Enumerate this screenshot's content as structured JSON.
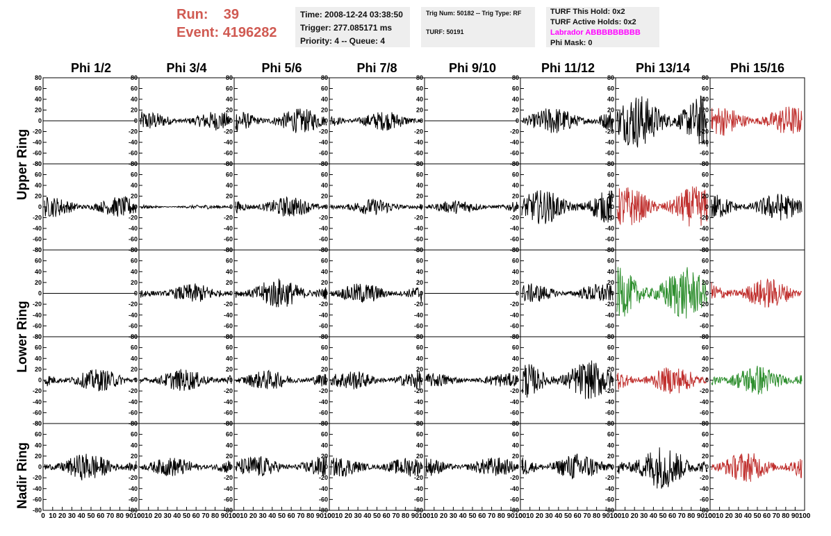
{
  "header": {
    "run_label": "Run:",
    "run_value": "39",
    "event_label": "Event:",
    "event_value": "4196282",
    "time": "Time: 2008-12-24 03:38:50",
    "trigger": "Trigger: 277.085171 ms",
    "priority": "Priority: 4 -- Queue: 4",
    "trig_num": "Trig Num: 50182 -- Trig Type: RF",
    "turf": "TURF: 50191",
    "turf_this_hold": "TURF This Hold: 0x2",
    "turf_active_holds": "TURF Active Holds: 0x2",
    "labrador": "Labrador ABBBBBBBBB",
    "phi_mask": "Phi Mask: 0"
  },
  "colors": {
    "run_text": "#d05a52",
    "labrador_text": "#ff00ff",
    "trace_default": "#000000",
    "trace_red": "#c0302e",
    "trace_green": "#2f8f2f"
  },
  "columns": [
    "Phi 1/2",
    "Phi 3/4",
    "Phi 5/6",
    "Phi 7/8",
    "Phi 9/10",
    "Phi 11/12",
    "Phi 13/14",
    "Phi 15/16"
  ],
  "ring_labels": [
    "Upper Ring",
    "Lower Ring",
    "Nadir Ring"
  ],
  "chart_data": {
    "type": "line",
    "description_rows": 5,
    "ylim": [
      -80,
      80
    ],
    "yticks": [
      80,
      60,
      40,
      20,
      0,
      -20,
      -40,
      -60,
      -80
    ],
    "xlim": [
      0,
      100
    ],
    "xticks": [
      0,
      10,
      20,
      30,
      40,
      50,
      60,
      70,
      80,
      90,
      100
    ],
    "grid": false,
    "panels": [
      [
        {
          "amp": 0,
          "color": "black"
        },
        {
          "amp": 14,
          "color": "black"
        },
        {
          "amp": 18,
          "color": "black"
        },
        {
          "amp": 14,
          "color": "black"
        },
        {
          "amp": 0,
          "color": "black"
        },
        {
          "amp": 20,
          "color": "black"
        },
        {
          "amp": 40,
          "color": "black"
        },
        {
          "amp": 22,
          "color": "red"
        }
      ],
      [
        {
          "amp": 15,
          "color": "black"
        },
        {
          "amp": 3,
          "color": "black"
        },
        {
          "amp": 15,
          "color": "black"
        },
        {
          "amp": 12,
          "color": "black"
        },
        {
          "amp": 10,
          "color": "black"
        },
        {
          "amp": 25,
          "color": "black"
        },
        {
          "amp": 30,
          "color": "red"
        },
        {
          "amp": 20,
          "color": "black"
        }
      ],
      [
        {
          "amp": 0,
          "color": "black"
        },
        {
          "amp": 14,
          "color": "black"
        },
        {
          "amp": 22,
          "color": "black"
        },
        {
          "amp": 15,
          "color": "black"
        },
        {
          "amp": 0,
          "color": "black"
        },
        {
          "amp": 14,
          "color": "black"
        },
        {
          "amp": 38,
          "color": "green"
        },
        {
          "amp": 22,
          "color": "red"
        }
      ],
      [
        {
          "amp": 16,
          "color": "black"
        },
        {
          "amp": 16,
          "color": "black"
        },
        {
          "amp": 14,
          "color": "black"
        },
        {
          "amp": 14,
          "color": "black"
        },
        {
          "amp": 10,
          "color": "black"
        },
        {
          "amp": 28,
          "color": "black"
        },
        {
          "amp": 20,
          "color": "red"
        },
        {
          "amp": 22,
          "color": "green"
        }
      ],
      [
        {
          "amp": 20,
          "color": "black"
        },
        {
          "amp": 14,
          "color": "black"
        },
        {
          "amp": 16,
          "color": "black"
        },
        {
          "amp": 14,
          "color": "black"
        },
        {
          "amp": 14,
          "color": "black"
        },
        {
          "amp": 20,
          "color": "black"
        },
        {
          "amp": 32,
          "color": "black"
        },
        {
          "amp": 22,
          "color": "red"
        }
      ]
    ]
  }
}
